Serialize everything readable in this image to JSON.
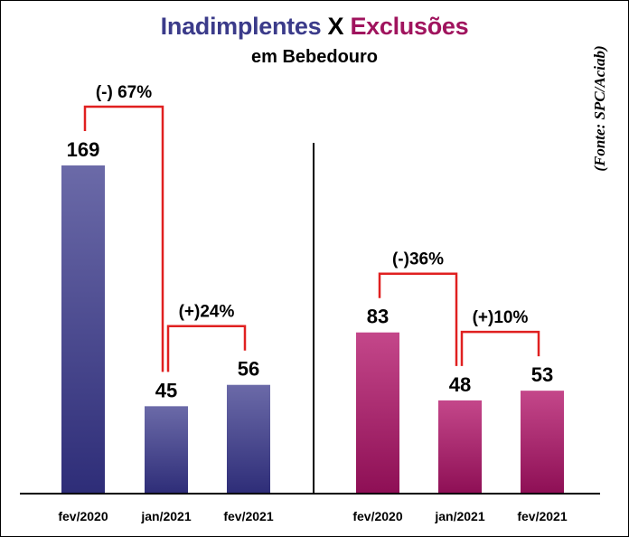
{
  "title": {
    "part1": "Inadimplentes",
    "sep": " X ",
    "part2": "Exclusões",
    "color1": "#3b3b8a",
    "color_sep": "#000000",
    "color2": "#a0145e"
  },
  "subtitle": "em Bebedouro",
  "source": "(Fonte: SPC/Aciab)",
  "colors": {
    "bar_left_top": "#6b6aa8",
    "bar_left_bottom": "#2e2d78",
    "bar_right_top": "#c4478a",
    "bar_right_bottom": "#8e0f55",
    "bracket": "#e02020"
  },
  "chart_data": [
    {
      "type": "bar",
      "title": "Inadimplentes",
      "categories": [
        "fev/2020",
        "jan/2021",
        "fev/2021"
      ],
      "values": [
        169,
        45,
        56
      ],
      "ylim": [
        0,
        169
      ],
      "annotations": [
        {
          "from": 0,
          "to": 1,
          "label": "(-) 67%"
        },
        {
          "from": 1,
          "to": 2,
          "label": "(+)24%"
        }
      ]
    },
    {
      "type": "bar",
      "title": "Exclusões",
      "categories": [
        "fev/2020",
        "jan/2021",
        "fev/2021"
      ],
      "values": [
        83,
        48,
        53
      ],
      "ylim": [
        0,
        169
      ],
      "annotations": [
        {
          "from": 0,
          "to": 1,
          "label": "(-)36%"
        },
        {
          "from": 1,
          "to": 2,
          "label": "(+)10%"
        }
      ]
    }
  ]
}
